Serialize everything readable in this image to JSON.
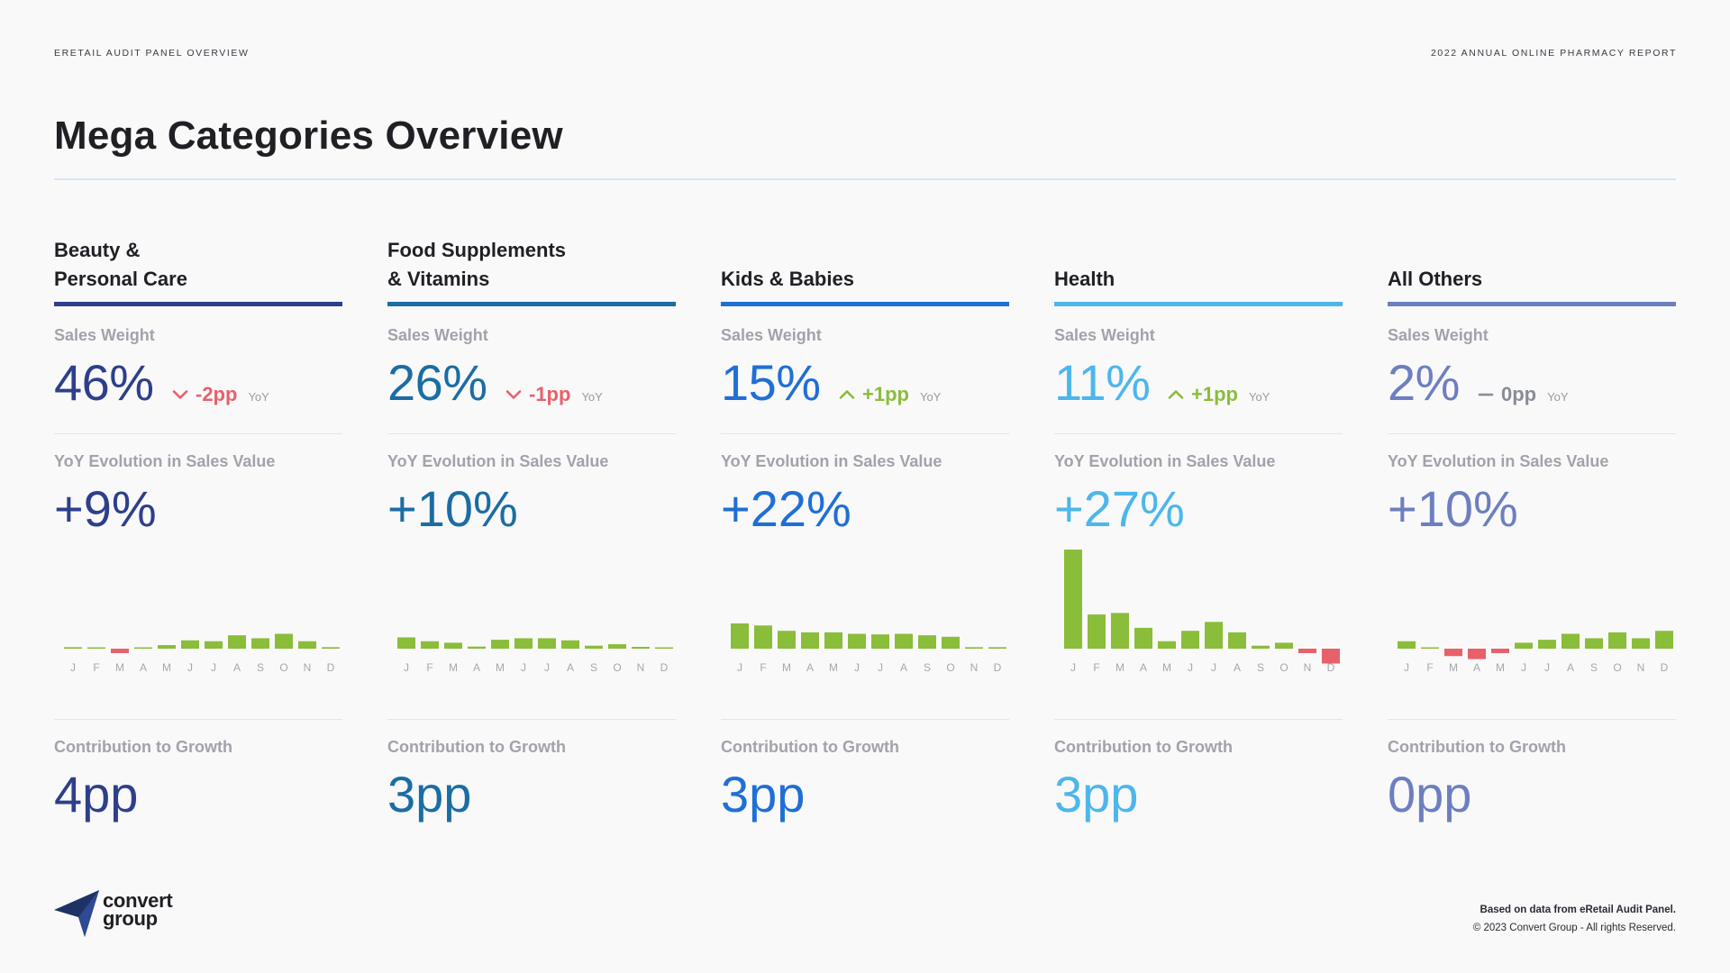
{
  "header": {
    "left": "ERETAIL AUDIT PANEL OVERVIEW",
    "right": "2022 ANNUAL ONLINE PHARMACY REPORT"
  },
  "title": "Mega Categories Overview",
  "labels": {
    "sales_weight": "Sales Weight",
    "yoy_evolution": "YoY Evolution in Sales Value",
    "contribution": "Contribution to Growth",
    "yoy_suffix": "YoY"
  },
  "months": [
    "J",
    "F",
    "M",
    "A",
    "M",
    "J",
    "J",
    "A",
    "S",
    "O",
    "N",
    "D"
  ],
  "colors": {
    "positive": "#8abd3a",
    "negative": "#e8606a",
    "neutral": "#8a8c96"
  },
  "categories": [
    {
      "name": "Beauty &\nPersonal Care",
      "color": "#2e3f8a",
      "sales_weight": "46%",
      "sw_change": "-2pp",
      "sw_direction": "down",
      "yoy_evolution": "+9%",
      "contribution": "4pp",
      "monthly": [
        0.5,
        0.3,
        -1.5,
        0.4,
        1.2,
        2.8,
        2.5,
        4.5,
        3.5,
        5.0,
        2.5,
        0.5
      ]
    },
    {
      "name": "Food Supplements\n& Vitamins",
      "color": "#1b6da3",
      "sales_weight": "26%",
      "sw_change": "-1pp",
      "sw_direction": "down",
      "yoy_evolution": "+10%",
      "contribution": "3pp",
      "monthly": [
        3.8,
        2.5,
        2.0,
        0.7,
        3.0,
        3.5,
        3.5,
        2.8,
        1.0,
        1.5,
        0.6,
        0.1
      ]
    },
    {
      "name": "Kids & Babies",
      "color": "#1f6fd6",
      "sales_weight": "15%",
      "sw_change": "+1pp",
      "sw_direction": "up",
      "yoy_evolution": "+22%",
      "contribution": "3pp",
      "monthly": [
        8.5,
        7.8,
        6.0,
        5.5,
        5.5,
        5.0,
        4.8,
        5.0,
        4.5,
        4.0,
        0.5,
        0.5
      ]
    },
    {
      "name": "Health",
      "color": "#4db6ec",
      "sales_weight": "11%",
      "sw_change": "+1pp",
      "sw_direction": "up",
      "yoy_evolution": "+27%",
      "contribution": "3pp",
      "monthly": [
        34.0,
        11.5,
        12.0,
        7.0,
        2.5,
        6.0,
        9.0,
        5.5,
        1.0,
        2.0,
        -1.5,
        -5.0
      ]
    },
    {
      "name": "All Others",
      "color": "#6d7fbf",
      "sales_weight": "2%",
      "sw_change": "0pp",
      "sw_direction": "flat",
      "yoy_evolution": "+10%",
      "contribution": "0pp",
      "monthly": [
        2.5,
        0.3,
        -2.5,
        -3.5,
        -1.5,
        2.0,
        3.0,
        5.0,
        3.5,
        5.5,
        3.5,
        6.0
      ]
    }
  ],
  "logo": {
    "line1": "convert",
    "line2": "group"
  },
  "footer": {
    "note": "Based on data from eRetail Audit Panel.",
    "copyright": "© 2023 Convert Group - All rights Reserved."
  }
}
